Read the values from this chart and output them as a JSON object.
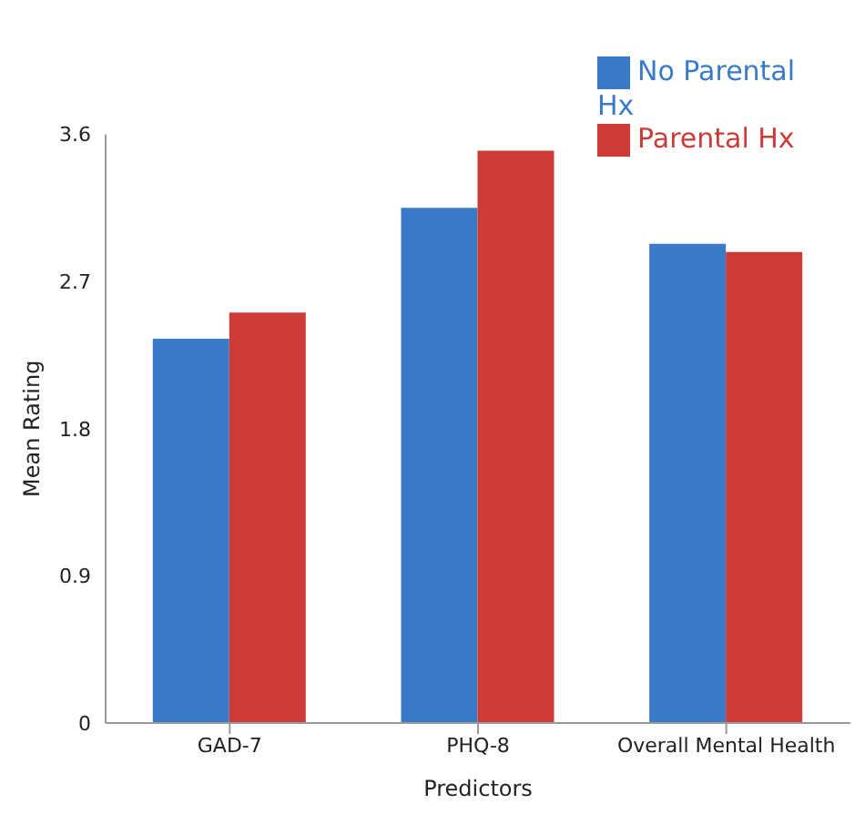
{
  "chart_data": {
    "type": "bar",
    "xlabel": "Predictors",
    "ylabel": "Mean Rating",
    "categories": [
      "GAD-7",
      "PHQ-8",
      "Overall Mental Health"
    ],
    "series": [
      {
        "name": "No Parental Hx",
        "color": "#3a7bc8",
        "values": [
          2.35,
          3.15,
          2.93
        ]
      },
      {
        "name": "Parental Hx",
        "color": "#cc3b38",
        "values": [
          2.51,
          3.5,
          2.88
        ]
      }
    ],
    "ylim": [
      0,
      3.6
    ],
    "yticks": [
      0,
      0.9,
      1.8,
      2.7,
      3.6
    ],
    "grid": false,
    "legend": "top right"
  }
}
